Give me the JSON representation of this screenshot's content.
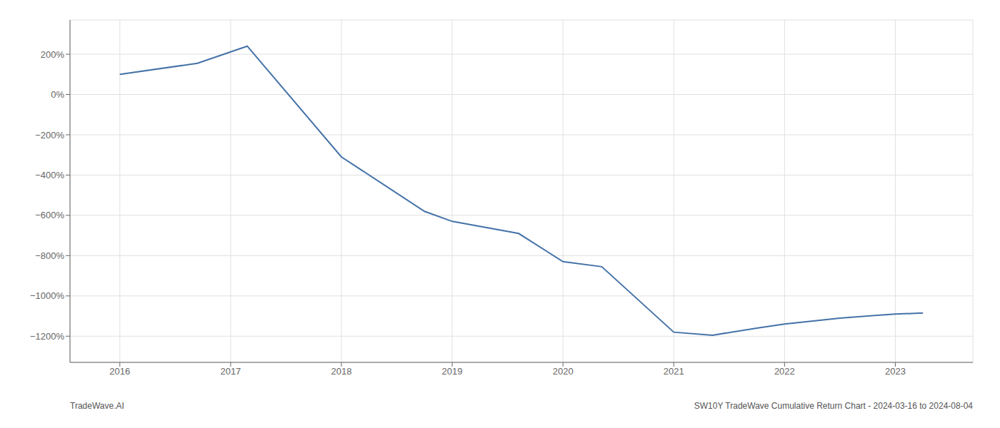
{
  "chart_data": {
    "type": "line",
    "x": [
      2016.0,
      2016.7,
      2017.15,
      2018.0,
      2018.75,
      2019.0,
      2019.6,
      2020.0,
      2020.35,
      2021.0,
      2021.35,
      2021.75,
      2022.0,
      2022.5,
      2022.75,
      2023.0,
      2023.25
    ],
    "values": [
      100,
      155,
      240,
      -310,
      -580,
      -630,
      -690,
      -830,
      -855,
      -1180,
      -1195,
      -1160,
      -1140,
      -1110,
      -1100,
      -1090,
      -1085
    ],
    "color": "#4472a8",
    "xlim": [
      2015.55,
      2023.7
    ],
    "ylim": [
      -1330,
      370
    ],
    "xticks": [
      2016,
      2017,
      2018,
      2019,
      2020,
      2021,
      2022,
      2023
    ],
    "yticks": [
      {
        "value": 200,
        "label": "200%"
      },
      {
        "value": 0,
        "label": "0%"
      },
      {
        "value": -200,
        "label": "−200%"
      },
      {
        "value": -400,
        "label": "−400%"
      },
      {
        "value": -600,
        "label": "−600%"
      },
      {
        "value": -800,
        "label": "−800%"
      },
      {
        "value": -1000,
        "label": "−1000%"
      },
      {
        "value": -1200,
        "label": "−1200%"
      }
    ],
    "grid": true,
    "annotations": [
      "TradeWave.AI",
      "SW10Y TradeWave Cumulative Return Chart - 2024-03-16 to 2024-08-04"
    ]
  }
}
